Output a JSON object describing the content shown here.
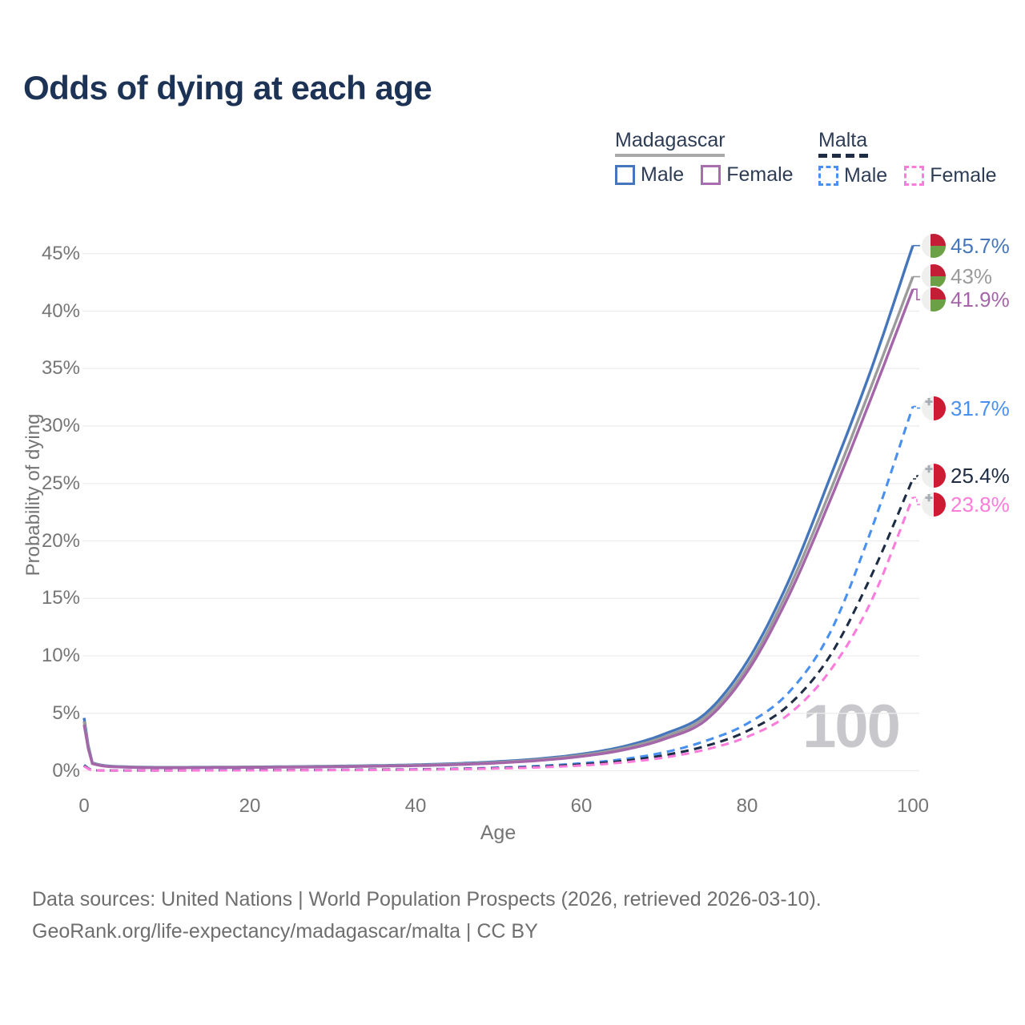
{
  "title": "Odds of dying at each age",
  "watermark_age": "100",
  "legend": {
    "groups": [
      {
        "country": "Madagascar",
        "line_style": "solid",
        "line_color": "#a9a9a9",
        "items": [
          {
            "label": "Male",
            "color": "#4576bc",
            "style": "solid"
          },
          {
            "label": "Female",
            "color": "#a96cae",
            "style": "solid"
          }
        ]
      },
      {
        "country": "Malta",
        "line_style": "dashed",
        "line_color": "#1e2c44",
        "items": [
          {
            "label": "Male",
            "color": "#4a90ee",
            "style": "dashed"
          },
          {
            "label": "Female",
            "color": "#fb7cdb",
            "style": "dashed"
          }
        ]
      }
    ]
  },
  "footer": {
    "line1": "Data sources: United Nations | World Population Prospects (2026, retrieved 2026-03-10).",
    "line2": "GeoRank.org/life-expectancy/madagascar/malta | CC BY"
  },
  "chart_data": {
    "type": "line",
    "title": "Odds of dying at each age",
    "xlabel": "Age",
    "ylabel": "Probability of dying",
    "xlim": [
      0,
      100
    ],
    "ylim_percent": [
      0,
      47
    ],
    "grid": "horizontal",
    "x_ticks": [
      0,
      20,
      40,
      60,
      80,
      100
    ],
    "x_tick_labels": [
      "0",
      "20",
      "40",
      "60",
      "80",
      "100"
    ],
    "y_ticks_percent": [
      0,
      5,
      10,
      15,
      20,
      25,
      30,
      35,
      40,
      45
    ],
    "y_tick_labels": [
      "0%",
      "5%",
      "10%",
      "15%",
      "20%",
      "25%",
      "30%",
      "35%",
      "40%",
      "45%"
    ],
    "ages": [
      0,
      1,
      5,
      10,
      15,
      20,
      25,
      30,
      35,
      40,
      45,
      50,
      55,
      60,
      65,
      70,
      75,
      80,
      85,
      90,
      95,
      100
    ],
    "series": [
      {
        "name": "Madagascar Male",
        "country": "Madagascar",
        "sex": "male",
        "style": "solid",
        "color": "#4576bc",
        "end_label": "45.7%",
        "flag_icon": "madagascar-flag-icon",
        "values": [
          4.6,
          0.7,
          0.35,
          0.3,
          0.31,
          0.33,
          0.36,
          0.4,
          0.45,
          0.52,
          0.63,
          0.8,
          1.05,
          1.45,
          2.1,
          3.2,
          5.0,
          9.5,
          16.5,
          25.5,
          35.0,
          45.7
        ]
      },
      {
        "name": "Madagascar Both sexes",
        "country": "Madagascar",
        "sex": "both",
        "style": "solid",
        "color": "#9b9b9b",
        "end_label": "43%",
        "flag_icon": "madagascar-flag-icon",
        "values": [
          4.3,
          0.66,
          0.33,
          0.28,
          0.29,
          0.31,
          0.34,
          0.37,
          0.42,
          0.48,
          0.58,
          0.74,
          0.97,
          1.35,
          1.95,
          2.95,
          4.7,
          9.0,
          15.8,
          24.3,
          33.5,
          43.0
        ]
      },
      {
        "name": "Madagascar Female",
        "country": "Madagascar",
        "sex": "female",
        "style": "solid",
        "color": "#a566a9",
        "end_label": "41.9%",
        "flag_icon": "madagascar-flag-icon",
        "values": [
          4.0,
          0.62,
          0.31,
          0.26,
          0.27,
          0.29,
          0.31,
          0.34,
          0.39,
          0.44,
          0.53,
          0.68,
          0.9,
          1.25,
          1.8,
          2.75,
          4.4,
          8.6,
          15.2,
          23.5,
          32.5,
          41.9
        ]
      },
      {
        "name": "Malta Male",
        "country": "Malta",
        "sex": "male",
        "style": "dashed",
        "color": "#4a90ee",
        "end_label": "31.7%",
        "flag_icon": "malta-flag-icon",
        "values": [
          0.5,
          0.04,
          0.03,
          0.03,
          0.05,
          0.06,
          0.07,
          0.08,
          0.1,
          0.13,
          0.18,
          0.27,
          0.42,
          0.65,
          1.0,
          1.6,
          2.6,
          4.1,
          6.8,
          12.0,
          21.0,
          31.7
        ]
      },
      {
        "name": "Malta Both sexes",
        "country": "Malta",
        "sex": "both",
        "style": "dashed",
        "color": "#1e2c44",
        "end_label": "25.4%",
        "flag_icon": "malta-flag-icon",
        "values": [
          0.45,
          0.035,
          0.025,
          0.025,
          0.04,
          0.05,
          0.06,
          0.07,
          0.09,
          0.11,
          0.16,
          0.23,
          0.35,
          0.55,
          0.85,
          1.35,
          2.15,
          3.45,
          5.7,
          10.0,
          17.0,
          25.4
        ]
      },
      {
        "name": "Malta Female",
        "country": "Malta",
        "sex": "female",
        "style": "dashed",
        "color": "#fb7cdb",
        "end_label": "23.8%",
        "flag_icon": "malta-flag-icon",
        "values": [
          0.4,
          0.03,
          0.02,
          0.02,
          0.03,
          0.04,
          0.05,
          0.06,
          0.07,
          0.1,
          0.14,
          0.2,
          0.3,
          0.46,
          0.72,
          1.15,
          1.85,
          2.95,
          4.9,
          8.7,
          14.8,
          23.8
        ]
      }
    ]
  }
}
